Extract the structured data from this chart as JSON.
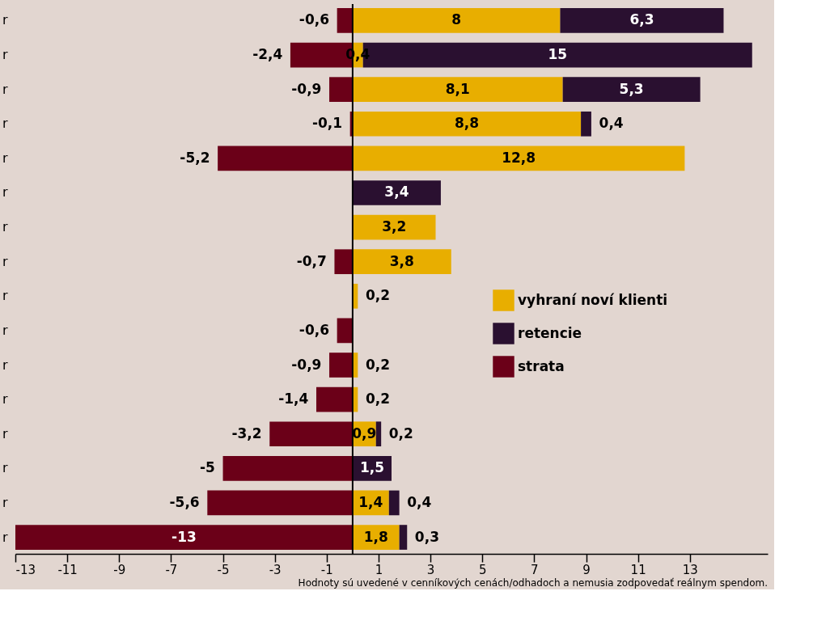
{
  "chart_data": {
    "type": "bar",
    "orientation": "horizontal",
    "stacked": true,
    "categories": [
      "r",
      "r",
      "r",
      "r",
      "r",
      "r",
      "r",
      "r",
      "r",
      "r",
      "r",
      "r",
      "r",
      "r",
      "r",
      "r"
    ],
    "series": [
      {
        "name": "vyhraní noví klienti",
        "color": "#e8ae00",
        "values": [
          8,
          0.4,
          8.1,
          8.8,
          12.8,
          null,
          3.2,
          3.8,
          0.2,
          null,
          0.2,
          0.2,
          0.9,
          null,
          1.4,
          1.8
        ],
        "value_labels": [
          "8",
          "0,4",
          "8,1",
          "8,8",
          "12,8",
          null,
          "3,2",
          "3,8",
          "0,2",
          null,
          "0,2",
          "0,2",
          "0,9",
          null,
          "1,4",
          "1,8"
        ]
      },
      {
        "name": "retencie",
        "color": "#2a1030",
        "values": [
          6.3,
          15,
          5.3,
          0.4,
          null,
          3.4,
          null,
          null,
          null,
          null,
          null,
          null,
          0.2,
          1.5,
          0.4,
          0.3
        ],
        "value_labels": [
          "6,3",
          "15",
          "5,3",
          "0,4",
          null,
          "3,4",
          null,
          null,
          null,
          null,
          null,
          null,
          "0,2",
          "1,5",
          "0,4",
          "0,3"
        ]
      },
      {
        "name": "strata",
        "color": "#6b0018",
        "values": [
          -0.6,
          -2.4,
          -0.9,
          -0.1,
          -5.2,
          null,
          null,
          -0.7,
          null,
          -0.6,
          -0.9,
          -1.4,
          -3.2,
          -5,
          -5.6,
          -13
        ],
        "value_labels": [
          "-0,6",
          "-2,4",
          "-0,9",
          "-0,1",
          "-5,2",
          null,
          null,
          "-0,7",
          null,
          "-0,6",
          "-0,9",
          "-1,4",
          "-3,2",
          "-5",
          "-5,6",
          "-13"
        ]
      }
    ],
    "xlim": [
      -13,
      16
    ],
    "xticks": [
      -13,
      -11,
      -9,
      -7,
      -5,
      -3,
      -1,
      1,
      3,
      5,
      7,
      9,
      11,
      13
    ],
    "legend": "right",
    "grid": false,
    "annotations": [
      "Hodnoty sú uvedené v cenníkových cenách/odhadoch a nemusia zodpovedať reálnym spendom."
    ]
  }
}
